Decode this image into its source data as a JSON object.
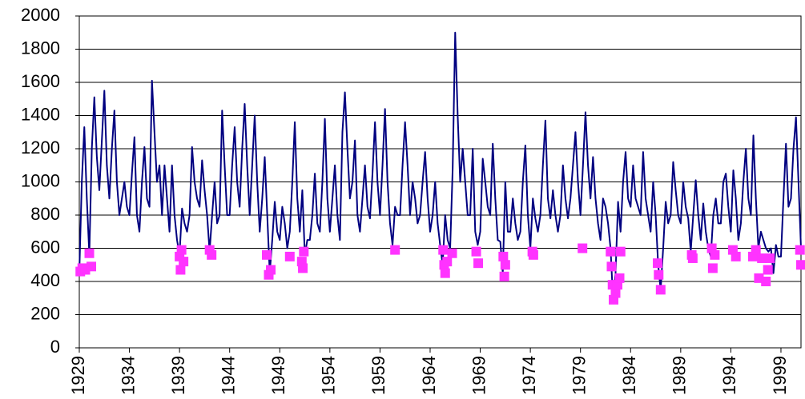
{
  "chart_data": {
    "type": "line",
    "xlim": [
      1929,
      2001
    ],
    "xticks": [
      1929,
      1934,
      1939,
      1944,
      1949,
      1954,
      1959,
      1964,
      1969,
      1974,
      1979,
      1984,
      1989,
      1994,
      1999
    ],
    "ylim": [
      0,
      2000
    ],
    "yticks": [
      0,
      200,
      400,
      600,
      800,
      1000,
      1200,
      1400,
      1600,
      1800,
      2000
    ],
    "grid": true,
    "series": [
      {
        "style": "line",
        "color": "#000080",
        "x": [
          1929,
          1929.25,
          1929.5,
          1929.75,
          1930,
          1930.25,
          1930.5,
          1930.75,
          1931,
          1931.25,
          1931.5,
          1931.75,
          1932,
          1932.25,
          1932.5,
          1932.75,
          1933,
          1933.25,
          1933.5,
          1933.75,
          1934,
          1934.25,
          1934.5,
          1934.75,
          1935,
          1935.25,
          1935.5,
          1935.75,
          1936,
          1936.25,
          1936.5,
          1936.75,
          1937,
          1937.25,
          1937.5,
          1937.75,
          1938,
          1938.25,
          1938.5,
          1938.75,
          1939,
          1939.25,
          1939.5,
          1939.75,
          1940,
          1940.25,
          1940.5,
          1940.75,
          1941,
          1941.25,
          1941.5,
          1941.75,
          1942,
          1942.25,
          1942.5,
          1942.75,
          1943,
          1943.25,
          1943.5,
          1943.75,
          1944,
          1944.25,
          1944.5,
          1944.75,
          1945,
          1945.25,
          1945.5,
          1945.75,
          1946,
          1946.25,
          1946.5,
          1946.75,
          1947,
          1947.25,
          1947.5,
          1947.75,
          1948,
          1948.25,
          1948.5,
          1948.75,
          1949,
          1949.25,
          1949.5,
          1949.75,
          1950,
          1950.25,
          1950.5,
          1950.75,
          1951,
          1951.25,
          1951.5,
          1951.75,
          1952,
          1952.25,
          1952.5,
          1952.75,
          1953,
          1953.25,
          1953.5,
          1953.75,
          1954,
          1954.25,
          1954.5,
          1954.75,
          1955,
          1955.25,
          1955.5,
          1955.75,
          1956,
          1956.25,
          1956.5,
          1956.75,
          1957,
          1957.25,
          1957.5,
          1957.75,
          1958,
          1958.25,
          1958.5,
          1958.75,
          1959,
          1959.25,
          1959.5,
          1959.75,
          1960,
          1960.25,
          1960.5,
          1960.75,
          1961,
          1961.25,
          1961.5,
          1961.75,
          1962,
          1962.25,
          1962.5,
          1962.75,
          1963,
          1963.25,
          1963.5,
          1963.75,
          1964,
          1964.25,
          1964.5,
          1964.75,
          1965,
          1965.25,
          1965.5,
          1965.75,
          1966,
          1966.25,
          1966.5,
          1966.75,
          1967,
          1967.25,
          1967.5,
          1967.75,
          1968,
          1968.25,
          1968.5,
          1968.75,
          1969,
          1969.25,
          1969.5,
          1969.75,
          1970,
          1970.25,
          1970.5,
          1970.75,
          1971,
          1971.25,
          1971.5,
          1971.75,
          1972,
          1972.25,
          1972.5,
          1972.75,
          1973,
          1973.25,
          1973.5,
          1973.75,
          1974,
          1974.25,
          1974.5,
          1974.75,
          1975,
          1975.25,
          1975.5,
          1975.75,
          1976,
          1976.25,
          1976.5,
          1976.75,
          1977,
          1977.25,
          1977.5,
          1977.75,
          1978,
          1978.25,
          1978.5,
          1978.75,
          1979,
          1979.25,
          1979.5,
          1979.75,
          1980,
          1980.25,
          1980.5,
          1980.75,
          1981,
          1981.25,
          1981.5,
          1981.75,
          1982,
          1982.25,
          1982.5,
          1982.75,
          1983,
          1983.25,
          1983.5,
          1983.75,
          1984,
          1984.25,
          1984.5,
          1984.75,
          1985,
          1985.25,
          1985.5,
          1985.75,
          1986,
          1986.25,
          1986.5,
          1986.75,
          1987,
          1987.25,
          1987.5,
          1987.75,
          1988,
          1988.25,
          1988.5,
          1988.75,
          1989,
          1989.25,
          1989.5,
          1989.75,
          1990,
          1990.25,
          1990.5,
          1990.75,
          1991,
          1991.25,
          1991.5,
          1991.75,
          1992,
          1992.25,
          1992.5,
          1992.75,
          1993,
          1993.25,
          1993.5,
          1993.75,
          1994,
          1994.25,
          1994.5,
          1994.75,
          1995,
          1995.25,
          1995.5,
          1995.75,
          1996,
          1996.25,
          1996.5,
          1996.75,
          1997,
          1997.25,
          1997.5,
          1997.75,
          1998,
          1998.25,
          1998.5,
          1998.75,
          1999,
          1999.25,
          1999.5,
          1999.75,
          2000,
          2000.25,
          2000.5,
          2000.75,
          2001
        ],
        "values": [
          450,
          1000,
          1330,
          900,
          560,
          1200,
          1510,
          1150,
          950,
          1250,
          1550,
          1100,
          900,
          1200,
          1430,
          1000,
          800,
          900,
          1000,
          850,
          800,
          1050,
          1270,
          800,
          700,
          1000,
          1210,
          900,
          850,
          1610,
          1300,
          1000,
          1100,
          800,
          1100,
          900,
          700,
          1100,
          800,
          650,
          560,
          840,
          750,
          700,
          800,
          1210,
          1000,
          900,
          850,
          1130,
          950,
          800,
          580,
          800,
          1000,
          750,
          800,
          1430,
          1100,
          800,
          800,
          1100,
          1330,
          1000,
          850,
          1200,
          1470,
          1100,
          800,
          1100,
          1400,
          1000,
          700,
          900,
          1150,
          800,
          450,
          650,
          880,
          700,
          650,
          850,
          750,
          600,
          700,
          1000,
          1360,
          900,
          700,
          950,
          560,
          650,
          650,
          800,
          1050,
          750,
          700,
          1000,
          1380,
          900,
          700,
          900,
          1100,
          800,
          650,
          1300,
          1540,
          1200,
          900,
          1000,
          1250,
          800,
          700,
          900,
          1100,
          850,
          780,
          1050,
          1360,
          1000,
          800,
          1100,
          1440,
          1000,
          750,
          620,
          850,
          800,
          800,
          1100,
          1360,
          1100,
          800,
          1000,
          900,
          750,
          800,
          1000,
          1180,
          900,
          700,
          800,
          1000,
          750,
          620,
          500,
          800,
          650,
          600,
          1080,
          1900,
          1400,
          1000,
          1200,
          1000,
          800,
          800,
          1200,
          700,
          620,
          700,
          1140,
          1000,
          850,
          800,
          1230,
          900,
          650,
          640,
          450,
          1000,
          700,
          700,
          900,
          750,
          650,
          700,
          1000,
          1220,
          800,
          600,
          900,
          780,
          700,
          800,
          1100,
          1370,
          900,
          780,
          950,
          800,
          700,
          800,
          1100,
          900,
          780,
          900,
          1100,
          1300,
          1000,
          800,
          1100,
          1420,
          1100,
          900,
          1150,
          900,
          750,
          650,
          900,
          850,
          750,
          600,
          290,
          450,
          880,
          700,
          1000,
          1180,
          900,
          850,
          1100,
          900,
          850,
          800,
          1180,
          900,
          800,
          700,
          1000,
          800,
          500,
          350,
          600,
          880,
          750,
          800,
          1120,
          950,
          800,
          750,
          1000,
          850,
          780,
          580,
          800,
          1010,
          800,
          650,
          870,
          700,
          600,
          550,
          800,
          900,
          750,
          750,
          1000,
          1050,
          850,
          700,
          1070,
          900,
          650,
          750,
          1000,
          1200,
          900,
          800,
          1280,
          900,
          600,
          700,
          650,
          600,
          580,
          600,
          450,
          620,
          550,
          550,
          900,
          1230,
          850,
          900,
          1200,
          1390,
          1000,
          600
        ]
      },
      {
        "style": "marker",
        "color": "#ff33ff",
        "x": [
          1929.1,
          1929.3,
          1929.6,
          1930.0,
          1930.2,
          1939.0,
          1939.1,
          1939.2,
          1939.4,
          1942.0,
          1942.2,
          1947.7,
          1947.9,
          1948.1,
          1950.0,
          1951.2,
          1951.3,
          1951.4,
          1960.5,
          1965.3,
          1965.4,
          1965.5,
          1965.7,
          1966.2,
          1968.6,
          1968.8,
          1971.3,
          1971.4,
          1971.5,
          1974.2,
          1974.3,
          1979.2,
          1982.0,
          1982.1,
          1982.2,
          1982.3,
          1982.5,
          1982.7,
          1982.9,
          1983.0,
          1986.7,
          1986.8,
          1987.0,
          1990.1,
          1990.2,
          1992.1,
          1992.2,
          1992.4,
          1994.2,
          1994.5,
          1996.2,
          1996.5,
          1996.8,
          1997.1,
          1997.5,
          1997.7,
          1997.9,
          2000.9,
          2001.0
        ],
        "values": [
          460,
          480,
          470,
          570,
          490,
          550,
          470,
          590,
          520,
          590,
          560,
          560,
          440,
          470,
          550,
          520,
          480,
          580,
          590,
          590,
          500,
          450,
          520,
          570,
          580,
          510,
          550,
          430,
          500,
          580,
          560,
          600,
          580,
          490,
          380,
          290,
          330,
          380,
          420,
          580,
          510,
          440,
          350,
          560,
          540,
          600,
          480,
          560,
          590,
          550,
          550,
          590,
          420,
          540,
          400,
          470,
          540,
          590,
          500
        ]
      }
    ]
  }
}
